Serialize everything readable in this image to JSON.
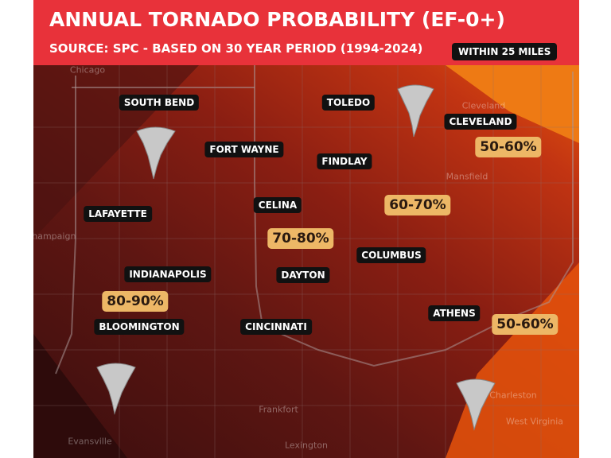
{
  "header": {
    "title": "ANNUAL TORNADO PROBABILITY (EF-0+)",
    "subtitle": "SOURCE: SPC - BASED ON 30 YEAR PERIOD (1994-2024)",
    "badge": "WITHIN 25 MILES"
  },
  "city_labels": [
    "SOUTH BEND",
    "TOLEDO",
    "CLEVELAND",
    "FORT WAYNE",
    "FINDLAY",
    "LAFAYETTE",
    "CELINA",
    "COLUMBUS",
    "INDIANAPOLIS",
    "DAYTON",
    "BLOOMINGTON",
    "CINCINNATI",
    "ATHENS"
  ],
  "probability_labels": [
    "50-60%",
    "60-70%",
    "70-80%",
    "80-90%",
    "50-60%"
  ],
  "basemap_labels": [
    "Chicago",
    "Cleveland",
    "Mansfield",
    "Champaign",
    "Evansville",
    "Frankfort",
    "Lexington",
    "Charleston",
    "West Virginia"
  ]
}
